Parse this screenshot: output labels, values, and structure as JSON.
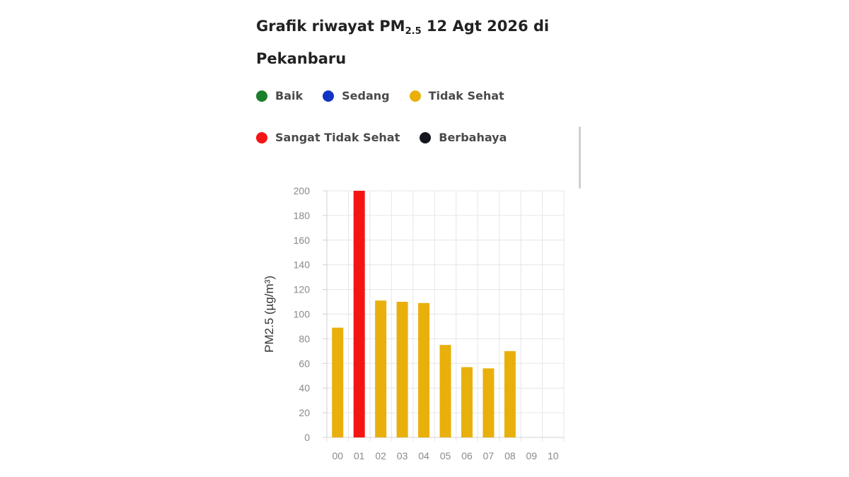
{
  "title": {
    "part1": "Grafik riwayat PM",
    "sub": "2.5",
    "part2": " 12 Agt 2026 di Pekanbaru"
  },
  "legend": [
    {
      "label": "Baik",
      "color": "#1a7f2a"
    },
    {
      "label": "Sedang",
      "color": "#1234c4"
    },
    {
      "label": "Tidak Sehat",
      "color": "#e9b00c"
    },
    {
      "label": "Sangat Tidak Sehat",
      "color": "#f51414"
    },
    {
      "label": "Berbahaya",
      "color": "#14161f"
    }
  ],
  "chart_data": {
    "type": "bar",
    "ylabel": "PM2.5 (µg/m³)",
    "categories": [
      "00",
      "01",
      "02",
      "03",
      "04",
      "05",
      "06",
      "07",
      "08",
      "09",
      "10"
    ],
    "values": [
      89,
      200,
      111,
      110,
      109,
      75,
      57,
      56,
      70,
      null,
      null
    ],
    "colors": [
      "#e9b00c",
      "#f51414",
      "#e9b00c",
      "#e9b00c",
      "#e9b00c",
      "#e9b00c",
      "#e9b00c",
      "#e9b00c",
      "#e9b00c",
      null,
      null
    ],
    "yticks": [
      "0",
      "20",
      "40",
      "60",
      "80",
      "100",
      "120",
      "140",
      "160",
      "180",
      "200"
    ],
    "ylim": [
      0,
      200
    ],
    "grid": true
  }
}
